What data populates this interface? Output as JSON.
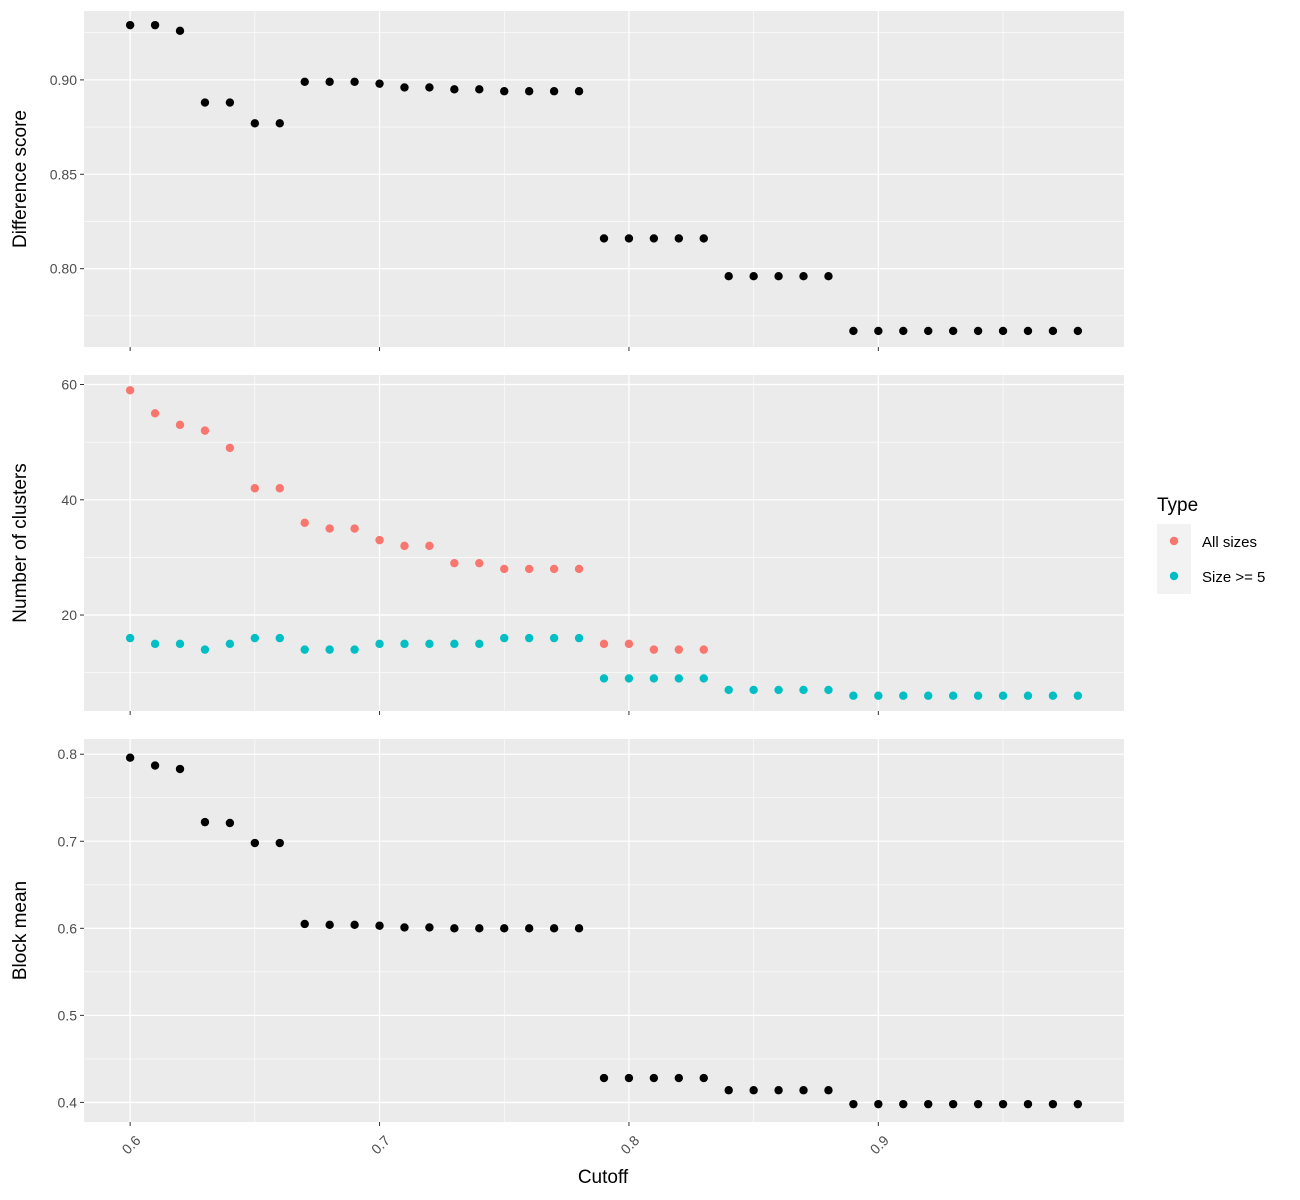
{
  "chart_data": [
    {
      "type": "scatter",
      "ylabel": "Difference score",
      "y_ticks": [
        0.8,
        0.85,
        0.9
      ],
      "y_tick_labels": [
        "0.80",
        "0.85",
        "0.90"
      ],
      "ylim": [
        0.7585,
        0.9365
      ],
      "series": [
        {
          "color": "#000000",
          "x": [
            0.6,
            0.61,
            0.62,
            0.63,
            0.64,
            0.65,
            0.66,
            0.67,
            0.68,
            0.69,
            0.7,
            0.71,
            0.72,
            0.73,
            0.74,
            0.75,
            0.76,
            0.77,
            0.78,
            0.79,
            0.8,
            0.81,
            0.82,
            0.83,
            0.84,
            0.85,
            0.86,
            0.87,
            0.88,
            0.89,
            0.9,
            0.91,
            0.92,
            0.93,
            0.94,
            0.95,
            0.96,
            0.97,
            0.98
          ],
          "y": [
            0.929,
            0.929,
            0.926,
            0.888,
            0.888,
            0.877,
            0.877,
            0.899,
            0.899,
            0.899,
            0.898,
            0.896,
            0.896,
            0.895,
            0.895,
            0.894,
            0.894,
            0.894,
            0.894,
            0.816,
            0.816,
            0.816,
            0.816,
            0.816,
            0.796,
            0.796,
            0.796,
            0.796,
            0.796,
            0.767,
            0.767,
            0.767,
            0.767,
            0.767,
            0.767,
            0.767,
            0.767,
            0.767,
            0.767
          ]
        }
      ]
    },
    {
      "type": "scatter",
      "ylabel": "Number of clusters",
      "y_ticks": [
        20,
        40,
        60
      ],
      "y_tick_labels": [
        "20",
        "40",
        "60"
      ],
      "ylim": [
        3.35,
        61.65
      ],
      "legend": {
        "title": "Type",
        "placement": "right"
      },
      "series": [
        {
          "name": "All sizes",
          "color": "#F8766D",
          "x": [
            0.6,
            0.61,
            0.62,
            0.63,
            0.64,
            0.65,
            0.66,
            0.67,
            0.68,
            0.69,
            0.7,
            0.71,
            0.72,
            0.73,
            0.74,
            0.75,
            0.76,
            0.77,
            0.78,
            0.79,
            0.8,
            0.81,
            0.82,
            0.83
          ],
          "y": [
            59,
            55,
            53,
            52,
            49,
            42,
            42,
            36,
            35,
            35,
            33,
            32,
            32,
            29,
            29,
            28,
            28,
            28,
            28,
            15,
            15,
            14,
            14,
            14
          ]
        },
        {
          "name": "Size >= 5",
          "color": "#00BFC4",
          "x": [
            0.6,
            0.61,
            0.62,
            0.63,
            0.64,
            0.65,
            0.66,
            0.67,
            0.68,
            0.69,
            0.7,
            0.71,
            0.72,
            0.73,
            0.74,
            0.75,
            0.76,
            0.77,
            0.78,
            0.79,
            0.8,
            0.81,
            0.82,
            0.83,
            0.84,
            0.85,
            0.86,
            0.87,
            0.88,
            0.89,
            0.9,
            0.91,
            0.92,
            0.93,
            0.94,
            0.95,
            0.96,
            0.97,
            0.98
          ],
          "y": [
            16,
            15,
            15,
            14,
            15,
            16,
            16,
            14,
            14,
            14,
            15,
            15,
            15,
            15,
            15,
            16,
            16,
            16,
            16,
            9,
            9,
            9,
            9,
            9,
            7,
            7,
            7,
            7,
            7,
            6,
            6,
            6,
            6,
            6,
            6,
            6,
            6,
            6,
            6
          ]
        }
      ]
    },
    {
      "type": "scatter",
      "ylabel": "Block mean",
      "xlabel": "Cutoff",
      "y_ticks": [
        0.4,
        0.5,
        0.6,
        0.7,
        0.8
      ],
      "y_tick_labels": [
        "0.4",
        "0.5",
        "0.6",
        "0.7",
        "0.8"
      ],
      "ylim": [
        0.3775,
        0.8175
      ],
      "series": [
        {
          "color": "#000000",
          "x": [
            0.6,
            0.61,
            0.62,
            0.63,
            0.64,
            0.65,
            0.66,
            0.67,
            0.68,
            0.69,
            0.7,
            0.71,
            0.72,
            0.73,
            0.74,
            0.75,
            0.76,
            0.77,
            0.78,
            0.79,
            0.8,
            0.81,
            0.82,
            0.83,
            0.84,
            0.85,
            0.86,
            0.87,
            0.88,
            0.89,
            0.9,
            0.91,
            0.92,
            0.93,
            0.94,
            0.95,
            0.96,
            0.97,
            0.98
          ],
          "y": [
            0.796,
            0.787,
            0.783,
            0.722,
            0.721,
            0.698,
            0.698,
            0.605,
            0.604,
            0.604,
            0.603,
            0.601,
            0.601,
            0.6,
            0.6,
            0.6,
            0.6,
            0.6,
            0.6,
            0.428,
            0.428,
            0.428,
            0.428,
            0.428,
            0.414,
            0.414,
            0.414,
            0.414,
            0.414,
            0.398,
            0.398,
            0.398,
            0.398,
            0.398,
            0.398,
            0.398,
            0.398,
            0.398,
            0.398
          ]
        }
      ]
    }
  ],
  "x_axis": {
    "label": "Cutoff",
    "ticks": [
      0.6,
      0.7,
      0.8,
      0.9
    ],
    "tick_labels": [
      "0.6",
      "0.7",
      "0.8",
      "0.9"
    ],
    "xlim": [
      0.5815,
      0.9985
    ]
  },
  "colors": {
    "panel_background": "#EBEBEB",
    "grid": "#FFFFFF",
    "all_sizes": "#F8766D",
    "size_ge_5": "#00BFC4",
    "points": "#000000"
  }
}
